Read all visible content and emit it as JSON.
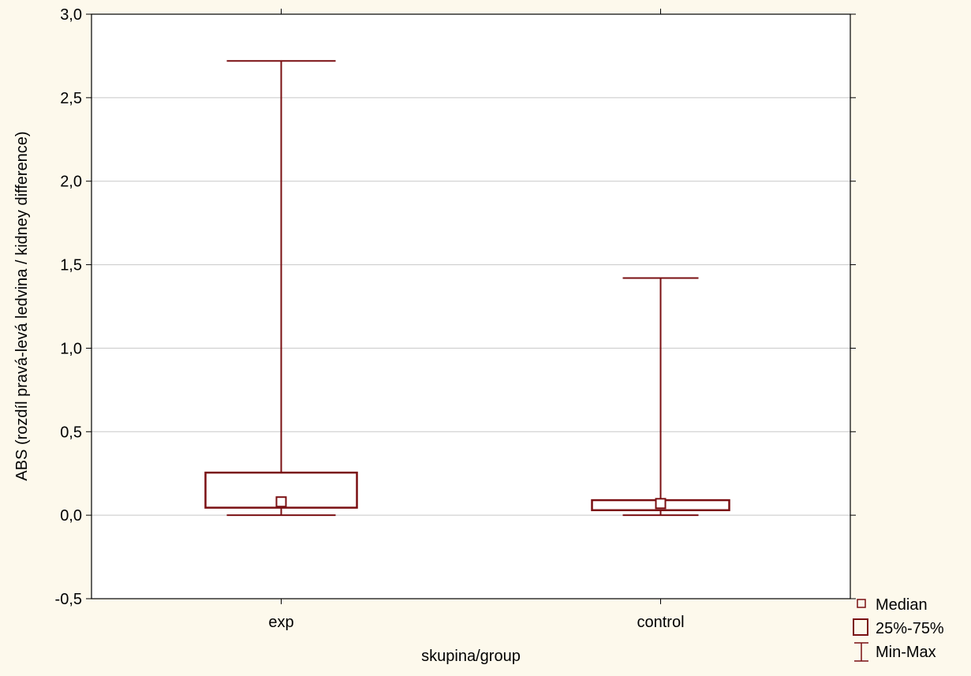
{
  "chart_data": {
    "type": "boxplot",
    "ylabel": "ABS (rozdíl pravá-levá ledvina / kidney difference)",
    "xlabel": "skupina/group",
    "ylim": [
      -0.5,
      3.0
    ],
    "yticks": [
      -0.5,
      0.0,
      0.5,
      1.0,
      1.5,
      2.0,
      2.5,
      3.0
    ],
    "ytick_labels": [
      "-0,5",
      "0,0",
      "0,5",
      "1,0",
      "1,5",
      "2,0",
      "2,5",
      "3,0"
    ],
    "grid": true,
    "categories": [
      "exp",
      "control"
    ],
    "boxes": [
      {
        "category": "exp",
        "min": 0.0,
        "q1": 0.045,
        "median": 0.08,
        "q3": 0.255,
        "max": 2.72
      },
      {
        "category": "control",
        "min": 0.0,
        "q1": 0.03,
        "median": 0.07,
        "q3": 0.09,
        "max": 1.42
      }
    ],
    "legend": {
      "placement": "bottom-right",
      "entries": [
        {
          "label": "Median",
          "symbol": "small-square"
        },
        {
          "label": "25%-75%",
          "symbol": "box"
        },
        {
          "label": "Min-Max",
          "symbol": "whisker"
        }
      ]
    },
    "colors": {
      "series": "#7a0f12",
      "grid": "#c8c8c8",
      "background": "#fdf9ec",
      "plot_background": "#ffffff"
    }
  }
}
